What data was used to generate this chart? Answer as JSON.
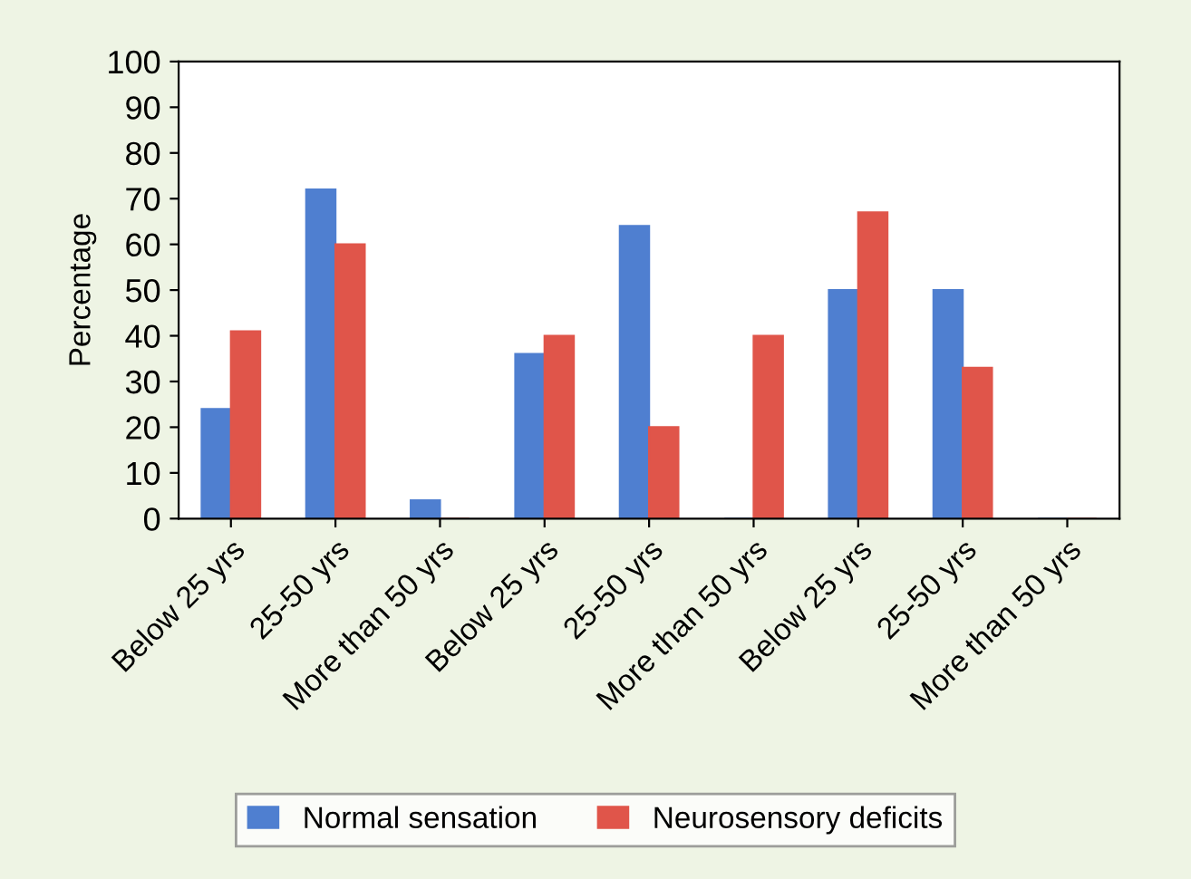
{
  "chart_data": {
    "type": "bar",
    "ylabel": "Percentage",
    "categories": [
      "Below 25 yrs",
      "25-50 yrs",
      "More than 50 yrs",
      "Below 25 yrs",
      "25-50 yrs",
      "More than 50 yrs",
      "Below 25 yrs",
      "25-50 yrs",
      "More than 50 yrs"
    ],
    "series": [
      {
        "name": "Normal sensation",
        "color": "#4f7fd0",
        "values": [
          24,
          72,
          4,
          36,
          64,
          0,
          50,
          50,
          0
        ]
      },
      {
        "name": "Neurosensory deficits",
        "color": "#e0554a",
        "values": [
          41,
          60,
          0,
          40,
          20,
          40,
          67,
          33,
          0
        ]
      }
    ],
    "ylim": [
      0,
      100
    ],
    "yticks": [
      0,
      10,
      20,
      30,
      40,
      50,
      60,
      70,
      80,
      90,
      100
    ],
    "grid": false,
    "legend": "bottom"
  }
}
